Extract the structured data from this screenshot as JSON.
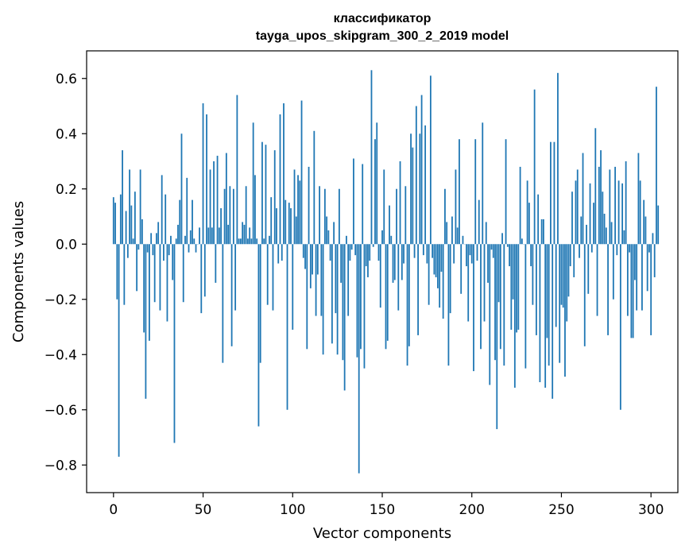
{
  "chart_data": {
    "type": "bar",
    "title": "классификатор",
    "subtitle": "tayga_upos_skipgram_300_2_2019 model",
    "xlabel": "Vector components",
    "ylabel": "Components values",
    "xlim": [
      -15,
      315
    ],
    "ylim": [
      -0.9,
      0.7
    ],
    "x_ticks": [
      0,
      50,
      100,
      150,
      200,
      250,
      300
    ],
    "x_tick_labels": [
      "0",
      "50",
      "100",
      "150",
      "200",
      "250",
      "300"
    ],
    "y_ticks": [
      -0.8,
      -0.6,
      -0.4,
      -0.2,
      0.0,
      0.2,
      0.4,
      0.6
    ],
    "y_tick_labels": [
      "−0.8",
      "−0.6",
      "−0.4",
      "−0.2",
      "0.0",
      "0.2",
      "0.4",
      "0.6"
    ],
    "grid": false,
    "bar_color": "#1f77b4",
    "values": [
      0.17,
      0.15,
      -0.2,
      -0.77,
      0.18,
      0.34,
      -0.22,
      0.12,
      -0.05,
      0.27,
      0.14,
      0.02,
      0.19,
      -0.17,
      -0.02,
      0.27,
      0.09,
      -0.32,
      -0.56,
      -0.03,
      -0.35,
      0.04,
      -0.04,
      -0.21,
      0.04,
      0.08,
      -0.24,
      0.25,
      -0.06,
      0.18,
      -0.28,
      -0.04,
      0.03,
      -0.13,
      -0.72,
      0.02,
      0.07,
      0.16,
      0.4,
      -0.21,
      0.03,
      0.24,
      -0.03,
      0.05,
      0.16,
      0.02,
      -0.03,
      0.0,
      0.06,
      -0.25,
      0.51,
      -0.19,
      0.47,
      0.06,
      0.27,
      0.06,
      0.3,
      -0.14,
      0.32,
      0.06,
      0.13,
      -0.43,
      0.2,
      0.33,
      0.07,
      0.21,
      -0.37,
      0.2,
      -0.24,
      0.54,
      0.02,
      0.02,
      0.08,
      0.07,
      0.21,
      0.02,
      0.06,
      0.02,
      0.44,
      0.25,
      0.02,
      -0.66,
      -0.43,
      0.37,
      0.02,
      0.36,
      -0.22,
      0.03,
      0.17,
      -0.24,
      0.34,
      0.13,
      -0.07,
      0.47,
      -0.06,
      0.51,
      0.16,
      -0.6,
      0.15,
      0.13,
      -0.31,
      0.27,
      0.1,
      0.25,
      0.23,
      0.52,
      -0.05,
      -0.09,
      -0.38,
      0.28,
      -0.16,
      -0.11,
      0.41,
      -0.26,
      -0.11,
      0.21,
      -0.26,
      -0.4,
      0.2,
      0.1,
      0.05,
      -0.06,
      -0.36,
      0.08,
      -0.25,
      -0.4,
      0.2,
      -0.14,
      -0.42,
      -0.53,
      0.03,
      -0.26,
      -0.06,
      -0.02,
      0.31,
      -0.04,
      -0.41,
      -0.83,
      -0.38,
      0.29,
      -0.45,
      -0.08,
      -0.12,
      -0.06,
      0.63,
      -0.01,
      0.38,
      0.44,
      -0.06,
      -0.23,
      0.05,
      0.27,
      -0.38,
      -0.35,
      0.14,
      0.03,
      -0.14,
      -0.13,
      0.2,
      -0.24,
      0.3,
      -0.13,
      -0.07,
      0.21,
      -0.44,
      -0.37,
      0.4,
      0.35,
      -0.05,
      0.5,
      -0.33,
      0.4,
      0.54,
      -0.04,
      0.43,
      -0.07,
      -0.22,
      0.61,
      -0.05,
      -0.11,
      -0.12,
      -0.16,
      -0.23,
      -0.1,
      -0.27,
      0.2,
      0.08,
      -0.44,
      -0.25,
      0.1,
      -0.07,
      0.27,
      0.06,
      0.38,
      -0.18,
      0.03,
      0.0,
      -0.08,
      -0.28,
      -0.04,
      -0.07,
      -0.46,
      0.38,
      -0.06,
      0.16,
      -0.38,
      0.44,
      -0.28,
      0.08,
      -0.14,
      -0.51,
      -0.02,
      -0.05,
      -0.42,
      -0.67,
      -0.21,
      -0.38,
      0.04,
      -0.44,
      0.38,
      -0.01,
      -0.08,
      -0.31,
      -0.2,
      -0.52,
      -0.32,
      -0.31,
      0.28,
      0.02,
      0.0,
      -0.45,
      0.23,
      0.15,
      -0.08,
      -0.22,
      0.56,
      -0.33,
      0.18,
      -0.5,
      0.09,
      0.09,
      -0.52,
      -0.34,
      -0.44,
      0.37,
      -0.56,
      0.37,
      -0.3,
      0.62,
      -0.43,
      -0.22,
      -0.23,
      -0.48,
      -0.28,
      -0.19,
      -0.08,
      0.19,
      -0.12,
      0.23,
      0.27,
      -0.05,
      0.1,
      0.33,
      -0.37,
      0.07,
      -0.18,
      0.22,
      -0.03,
      0.15,
      0.42,
      -0.26,
      0.28,
      0.34,
      0.19,
      0.11,
      0.06,
      -0.33,
      0.27,
      0.08,
      -0.2,
      0.28,
      -0.04,
      0.23,
      -0.6,
      0.22,
      0.05,
      0.3,
      -0.26,
      -0.03,
      -0.34,
      -0.34,
      -0.13,
      -0.24,
      0.33,
      0.23,
      -0.24,
      0.16,
      0.1,
      -0.17,
      -0.03,
      -0.33,
      0.04,
      -0.12,
      0.57,
      0.14
    ]
  }
}
